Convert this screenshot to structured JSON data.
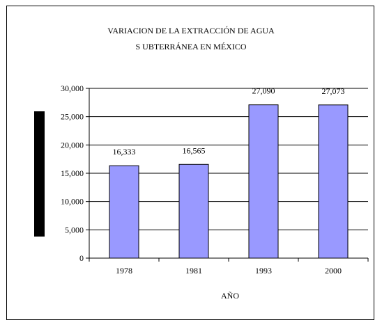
{
  "chart_data": {
    "type": "bar",
    "title_lines": [
      "VARIACION DE LA EXTRACCIÓN DE AGUA",
      "S UBTERRÁNEA EN MÉXICO"
    ],
    "xlabel": "AÑO",
    "ylabel": "",
    "categories": [
      "1978",
      "1981",
      "1993",
      "2000"
    ],
    "values": [
      16333,
      16565,
      27090,
      27073
    ],
    "data_labels": [
      "16,333",
      "16,565",
      "27,090",
      "27,073"
    ],
    "y_ticks": [
      0,
      5000,
      10000,
      15000,
      20000,
      25000,
      30000
    ],
    "y_tick_labels": [
      "0",
      "5,000",
      "10,000",
      "15,000",
      "20,000",
      "25,000",
      "30,000"
    ],
    "ylim": [
      0,
      30000
    ],
    "grid": true,
    "legend": "none",
    "colors": {
      "bar_fill": "#9999ff",
      "bar_stroke": "#000000",
      "grid": "#000000",
      "ylabel_box": "#000000"
    }
  }
}
